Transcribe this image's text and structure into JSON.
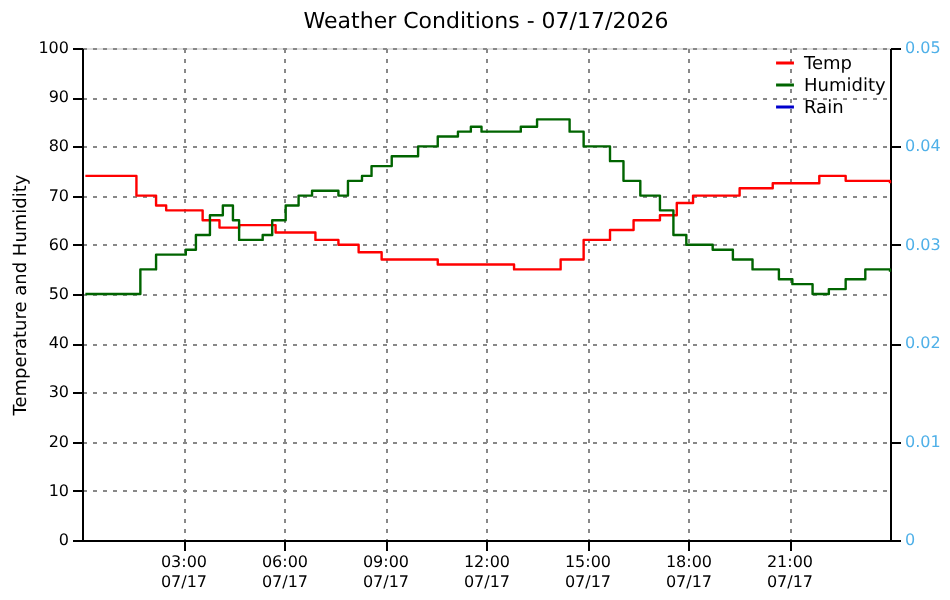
{
  "chart_data": {
    "type": "step",
    "title": "Weather Conditions - 07/17/2026",
    "ylabel": "Temperature and Humidity",
    "xlim": [
      "2026-07-17T00:00",
      "2026-07-18T00:00"
    ],
    "xticks": [
      {
        "value": "2026-07-17T03:00",
        "label": "03:00\n07/17"
      },
      {
        "value": "2026-07-17T06:00",
        "label": "06:00\n07/17"
      },
      {
        "value": "2026-07-17T09:00",
        "label": "09:00\n07/17"
      },
      {
        "value": "2026-07-17T12:00",
        "label": "12:00\n07/17"
      },
      {
        "value": "2026-07-17T15:00",
        "label": "15:00\n07/17"
      },
      {
        "value": "2026-07-17T18:00",
        "label": "18:00\n07/17"
      },
      {
        "value": "2026-07-17T21:00",
        "label": "21:00\n07/17"
      }
    ],
    "ylim": [
      0,
      100
    ],
    "yticks": [
      0,
      10,
      20,
      30,
      40,
      50,
      60,
      70,
      80,
      90,
      100
    ],
    "y2lim": [
      0,
      0.05
    ],
    "y2ticks": [
      0,
      0.01,
      0.02,
      0.03,
      0.04,
      0.05
    ],
    "grid": true,
    "legend": "top right",
    "series": [
      {
        "name": "Temp",
        "color": "#ff0000",
        "x": [
          "2026-07-17T00:06",
          "2026-07-17T01:19",
          "2026-07-17T01:37",
          "2026-07-17T02:12",
          "2026-07-17T02:30",
          "2026-07-17T03:17",
          "2026-07-17T03:35",
          "2026-07-17T04:05",
          "2026-07-17T04:34",
          "2026-07-17T04:40",
          "2026-07-17T05:22",
          "2026-07-17T05:45",
          "2026-07-17T06:14",
          "2026-07-17T06:56",
          "2026-07-17T07:37",
          "2026-07-17T08:13",
          "2026-07-17T08:54",
          "2026-07-17T09:47",
          "2026-07-17T10:34",
          "2026-07-17T11:39",
          "2026-07-17T12:03",
          "2026-07-17T12:50",
          "2026-07-17T13:49",
          "2026-07-17T14:13",
          "2026-07-17T14:54",
          "2026-07-17T15:41",
          "2026-07-17T16:23",
          "2026-07-17T17:10",
          "2026-07-17T17:40",
          "2026-07-17T18:09",
          "2026-07-17T18:44",
          "2026-07-17T19:32",
          "2026-07-17T20:31",
          "2026-07-17T21:54",
          "2026-07-17T22:41",
          "2026-07-18T00:00"
        ],
        "values": [
          74,
          74,
          70,
          68,
          67,
          67,
          65,
          63.5,
          63.5,
          64,
          64,
          62.5,
          62.5,
          61,
          60,
          58.5,
          57,
          57,
          56,
          56,
          56,
          55,
          55,
          57,
          61,
          63,
          65,
          66,
          68.5,
          70,
          70,
          71.5,
          72.5,
          74,
          73,
          72.5
        ]
      },
      {
        "name": "Humidity",
        "color": "#006400",
        "x": [
          "2026-07-17T00:06",
          "2026-07-17T01:19",
          "2026-07-17T01:44",
          "2026-07-17T02:12",
          "2026-07-17T02:47",
          "2026-07-17T03:05",
          "2026-07-17T03:23",
          "2026-07-17T03:48",
          "2026-07-17T04:11",
          "2026-07-17T04:29",
          "2026-07-17T04:40",
          "2026-07-17T05:16",
          "2026-07-17T05:22",
          "2026-07-17T05:39",
          "2026-07-17T06:03",
          "2026-07-17T06:26",
          "2026-07-17T06:50",
          "2026-07-17T07:25",
          "2026-07-17T07:37",
          "2026-07-17T07:54",
          "2026-07-17T08:19",
          "2026-07-17T08:36",
          "2026-07-17T08:54",
          "2026-07-17T09:12",
          "2026-07-17T09:59",
          "2026-07-17T10:34",
          "2026-07-17T11:10",
          "2026-07-17T11:33",
          "2026-07-17T11:52",
          "2026-07-17T12:15",
          "2026-07-17T13:02",
          "2026-07-17T13:31",
          "2026-07-17T14:18",
          "2026-07-17T14:29",
          "2026-07-17T14:54",
          "2026-07-17T15:24",
          "2026-07-17T15:41",
          "2026-07-17T16:05",
          "2026-07-17T16:35",
          "2026-07-17T17:10",
          "2026-07-17T17:34",
          "2026-07-17T17:57",
          "2026-07-17T18:44",
          "2026-07-17T19:20",
          "2026-07-17T19:55",
          "2026-07-17T20:42",
          "2026-07-17T21:06",
          "2026-07-17T21:42",
          "2026-07-17T22:11",
          "2026-07-17T22:41",
          "2026-07-17T23:16",
          "2026-07-18T00:00"
        ],
        "values": [
          50,
          50,
          55,
          58,
          58,
          59,
          62,
          66,
          68,
          65,
          61,
          61,
          62,
          65,
          68,
          70,
          71,
          71,
          70,
          73,
          74,
          76,
          76,
          78,
          80,
          82,
          83,
          84,
          83,
          83,
          84,
          85.5,
          85.5,
          83,
          80,
          80,
          77,
          73,
          70,
          67,
          62,
          60,
          59,
          57,
          55,
          53,
          52,
          50,
          51,
          53,
          55,
          54.5
        ]
      },
      {
        "name": "Rain",
        "color": "#0000cd",
        "axis": "y2"
      }
    ]
  }
}
